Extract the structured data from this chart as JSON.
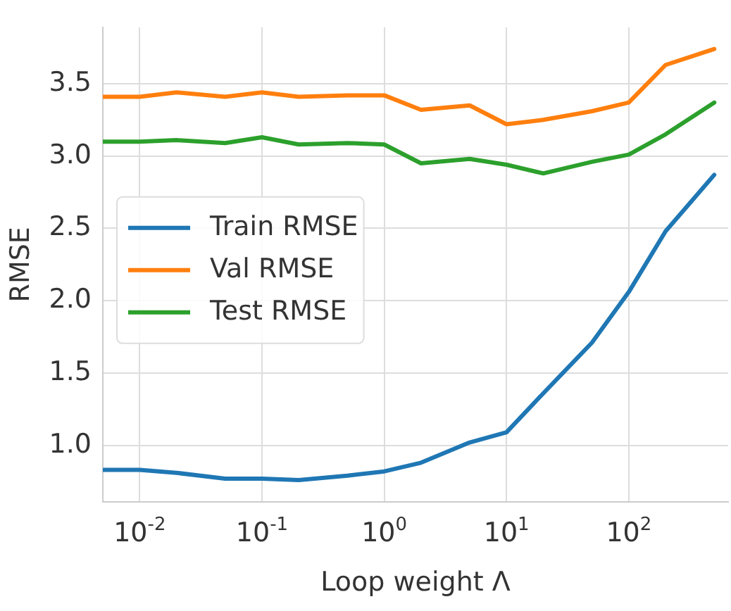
{
  "chart_data": {
    "type": "line",
    "xlabel": "Loop weight Λ",
    "ylabel": "RMSE",
    "log": "x",
    "x": [
      0.005,
      0.01,
      0.02,
      0.05,
      0.1,
      0.2,
      0.5,
      1,
      2,
      5,
      10,
      20,
      50,
      100,
      200,
      500
    ],
    "series": [
      {
        "name": "Train RMSE",
        "color": "#1f77b4",
        "values": [
          0.83,
          0.83,
          0.81,
          0.77,
          0.77,
          0.76,
          0.79,
          0.82,
          0.88,
          1.02,
          1.09,
          1.36,
          1.71,
          2.06,
          2.48,
          2.87
        ]
      },
      {
        "name": "Val RMSE",
        "color": "#ff7f0e",
        "values": [
          3.41,
          3.41,
          3.44,
          3.41,
          3.44,
          3.41,
          3.42,
          3.42,
          3.32,
          3.35,
          3.22,
          3.25,
          3.31,
          3.37,
          3.63,
          3.74
        ]
      },
      {
        "name": "Test RMSE",
        "color": "#2ca02c",
        "values": [
          3.1,
          3.1,
          3.11,
          3.09,
          3.13,
          3.08,
          3.09,
          3.08,
          2.95,
          2.98,
          2.94,
          2.88,
          2.96,
          3.01,
          3.15,
          3.37
        ]
      }
    ],
    "xlim": [
      0.005,
      650
    ],
    "xticks": [
      {
        "value": 0.01,
        "label": "10$^{-2}$"
      },
      {
        "value": 0.1,
        "label": "10$^{-1}$"
      },
      {
        "value": 1,
        "label": "10$^{0}$"
      },
      {
        "value": 10,
        "label": "10$^{1}$"
      },
      {
        "value": 100,
        "label": "10$^{2}$"
      }
    ],
    "ylim": [
      0.61,
      3.89
    ],
    "yticks": [
      {
        "value": 1,
        "label": "1.0"
      },
      1.5,
      {
        "value": 2,
        "label": "2.0"
      },
      2.5,
      {
        "value": 3,
        "label": "3.0"
      },
      3.5
    ],
    "grid": true,
    "legend": "center left",
    "marker": "none",
    "line_style": "solid"
  }
}
